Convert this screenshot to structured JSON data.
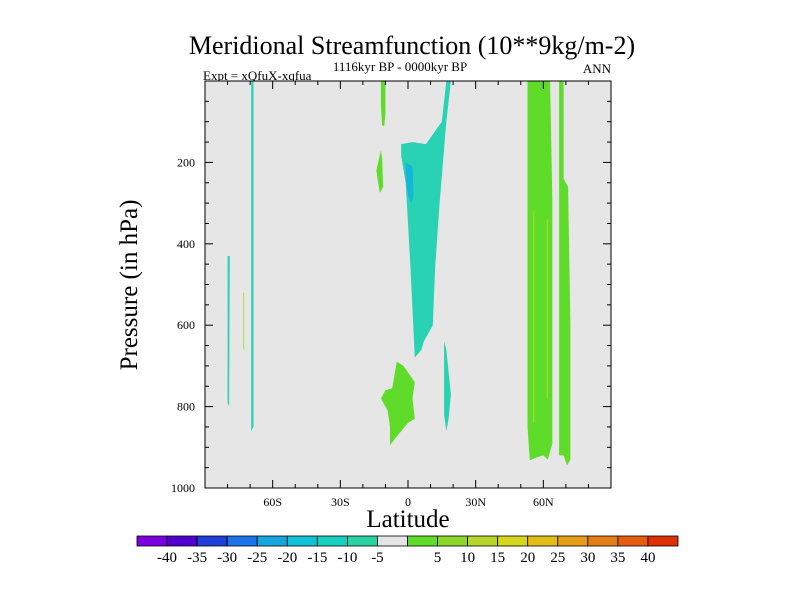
{
  "chart_data": {
    "type": "contour",
    "title": "Meridional Streamfunction (10**9kg/m-2)",
    "left_label": "Expt = xQfuX-xqfua",
    "center_label": "1116kyr BP - 0000kyr BP",
    "right_label": "ANN",
    "xlabel": "Latitude",
    "ylabel": "Pressure (in hPa)",
    "xlim": [
      -90,
      90
    ],
    "ylim": [
      1000,
      0
    ],
    "x_ticks": [
      {
        "value": -60,
        "label": "60S"
      },
      {
        "value": -30,
        "label": "30S"
      },
      {
        "value": 0,
        "label": "0"
      },
      {
        "value": 30,
        "label": "30N"
      },
      {
        "value": 60,
        "label": "60N"
      }
    ],
    "y_ticks": [
      {
        "value": 200,
        "label": "200"
      },
      {
        "value": 400,
        "label": "400"
      },
      {
        "value": 600,
        "label": "600"
      },
      {
        "value": 800,
        "label": "800"
      },
      {
        "value": 1000,
        "label": "1000"
      }
    ],
    "background_color": "#e6e6e6",
    "regions": [
      {
        "name": "band-60n",
        "level": 5,
        "color": "#5fdc2a",
        "points": [
          [
            53,
            0
          ],
          [
            63,
            0
          ],
          [
            64,
            300
          ],
          [
            64,
            890
          ],
          [
            62,
            930
          ],
          [
            60,
            920
          ],
          [
            57,
            925
          ],
          [
            54,
            932
          ],
          [
            53,
            850
          ],
          [
            53,
            300
          ]
        ]
      },
      {
        "name": "band-60n-inner-a",
        "level": 10,
        "color": "#a6dc2a",
        "points": [
          [
            55.5,
            320
          ],
          [
            56,
            320
          ],
          [
            56,
            840
          ],
          [
            55.5,
            840
          ]
        ]
      },
      {
        "name": "band-60n-inner-b",
        "level": 10,
        "color": "#a6dc2a",
        "points": [
          [
            61.5,
            340
          ],
          [
            62,
            340
          ],
          [
            62,
            780
          ],
          [
            61.5,
            780
          ]
        ]
      },
      {
        "name": "band-70n",
        "level": 5,
        "color": "#5fdc2a",
        "points": [
          [
            67,
            0
          ],
          [
            69,
            0
          ],
          [
            69,
            240
          ],
          [
            71,
            260
          ],
          [
            72,
            600
          ],
          [
            72,
            930
          ],
          [
            70.5,
            945
          ],
          [
            69,
            920
          ],
          [
            67,
            920
          ],
          [
            67,
            400
          ]
        ]
      },
      {
        "name": "equatorial-cell",
        "level": -5,
        "color": "#2ad2b4",
        "points": [
          [
            -3,
            155
          ],
          [
            2,
            150
          ],
          [
            8,
            155
          ],
          [
            15,
            100
          ],
          [
            17,
            0
          ],
          [
            19,
            0
          ],
          [
            17,
            100
          ],
          [
            14,
            300
          ],
          [
            12,
            460
          ],
          [
            11,
            600
          ],
          [
            7,
            640
          ],
          [
            6,
            660
          ],
          [
            3,
            680
          ],
          [
            1,
            450
          ],
          [
            -1,
            250
          ],
          [
            -3,
            185
          ]
        ]
      },
      {
        "name": "equatorial-core",
        "level": -10,
        "color": "#16b6d8",
        "points": [
          [
            -1,
            200
          ],
          [
            2,
            210
          ],
          [
            2.5,
            280
          ],
          [
            1.5,
            300
          ],
          [
            0,
            280
          ],
          [
            -1,
            240
          ]
        ]
      },
      {
        "name": "upper-patch-a",
        "level": 5,
        "color": "#5fdc2a",
        "points": [
          [
            -12,
            0
          ],
          [
            -10,
            0
          ],
          [
            -10,
            80
          ],
          [
            -10.5,
            110
          ],
          [
            -11.5,
            110
          ],
          [
            -12,
            60
          ]
        ]
      },
      {
        "name": "upper-patch-b",
        "level": 5,
        "color": "#5fdc2a",
        "points": [
          [
            -14,
            220
          ],
          [
            -12,
            170
          ],
          [
            -11.5,
            190
          ],
          [
            -11,
            260
          ],
          [
            -12.5,
            275
          ],
          [
            -13.5,
            240
          ]
        ]
      },
      {
        "name": "lower-patch",
        "level": 5,
        "color": "#5fdc2a",
        "points": [
          [
            -12,
            780
          ],
          [
            -10,
            760
          ],
          [
            -7,
            755
          ],
          [
            -5,
            690
          ],
          [
            -2,
            700
          ],
          [
            3,
            740
          ],
          [
            2,
            780
          ],
          [
            3,
            830
          ],
          [
            0,
            840
          ],
          [
            -6,
            880
          ],
          [
            -8,
            895
          ],
          [
            -8,
            850
          ],
          [
            -9,
            810
          ]
        ]
      },
      {
        "name": "nh-narrow",
        "level": -5,
        "color": "#2ad2b4",
        "points": [
          [
            16,
            640
          ],
          [
            17,
            660
          ],
          [
            19,
            770
          ],
          [
            18,
            830
          ],
          [
            17,
            860
          ],
          [
            16,
            820
          ],
          [
            16,
            720
          ]
        ]
      },
      {
        "name": "sh-strip-a",
        "level": -5,
        "color": "#2ad2b4",
        "points": [
          [
            -80,
            430
          ],
          [
            -79,
            430
          ],
          [
            -79.3,
            800
          ],
          [
            -80,
            790
          ]
        ]
      },
      {
        "name": "sh-strip-b",
        "level": -5,
        "color": "#2ad2b4",
        "points": [
          [
            -69.5,
            0
          ],
          [
            -68.5,
            0
          ],
          [
            -68.5,
            850
          ],
          [
            -69.5,
            860
          ]
        ]
      },
      {
        "name": "sh-strip-b-edge",
        "level": 5,
        "color": "#a6dc2a",
        "points": [
          [
            -73,
            520
          ],
          [
            -72.6,
            520
          ],
          [
            -72.6,
            660
          ],
          [
            -73,
            660
          ]
        ]
      }
    ],
    "colorbar": {
      "colors": [
        "#7b00e0",
        "#5200d0",
        "#1f3fd8",
        "#1b74e8",
        "#15a6e0",
        "#10c2d8",
        "#17cfc0",
        "#2ad2a2",
        "#e4e4e4",
        "#5fdc2a",
        "#8ad62a",
        "#b4d62a",
        "#d6d61c",
        "#e4bc16",
        "#e49e16",
        "#e47e16",
        "#e45c10",
        "#e03008"
      ],
      "labels": [
        "-40",
        "-35",
        "-30",
        "-25",
        "-20",
        "-15",
        "-10",
        "-5",
        "5",
        "10",
        "15",
        "20",
        "25",
        "30",
        "35",
        "40"
      ]
    }
  }
}
